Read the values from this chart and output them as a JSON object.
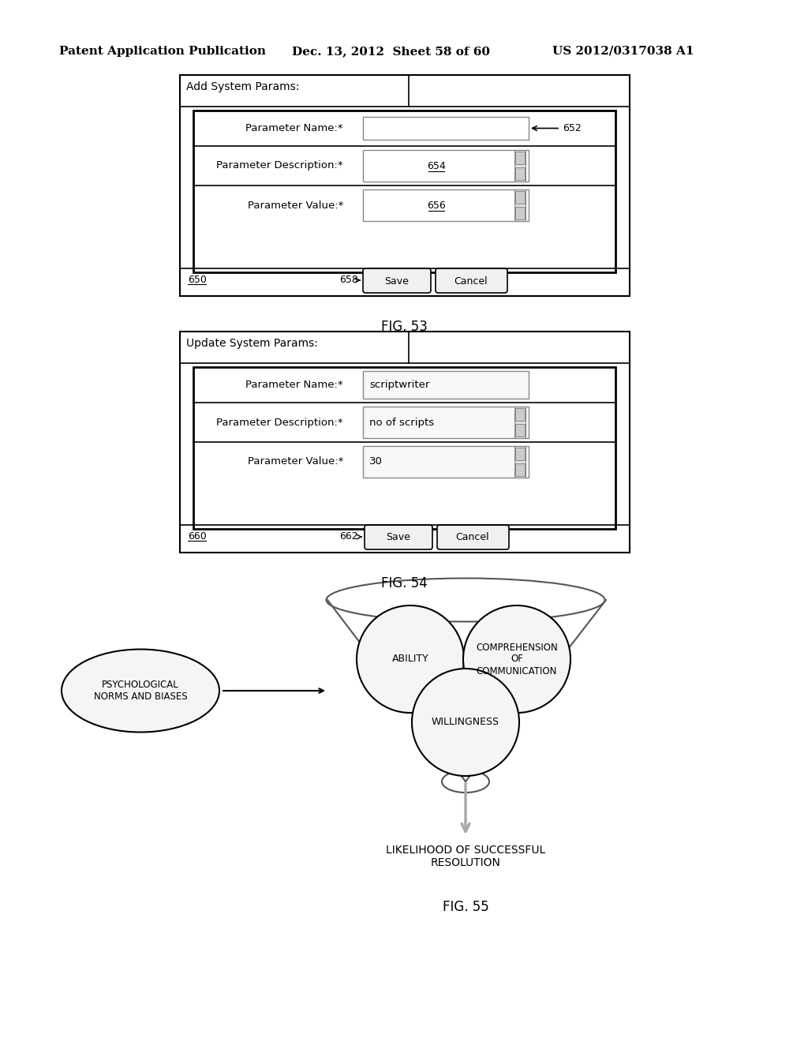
{
  "bg_color": "#ffffff",
  "header_text": "Patent Application Publication",
  "header_date": "Dec. 13, 2012  Sheet 58 of 60",
  "header_patent": "US 2012/0317038 A1",
  "fig53_title": "FIG. 53",
  "fig54_title": "FIG. 54",
  "fig55_title": "FIG. 55",
  "fig53_header": "Add System Params:",
  "fig53_rows": [
    "Parameter Name:*",
    "Parameter Description:*",
    "Parameter Value:*"
  ],
  "fig53_labels": [
    "652",
    "654",
    "656"
  ],
  "fig53_bottom_left": "650",
  "fig53_bottom_label": "658",
  "fig54_header": "Update System Params:",
  "fig54_rows": [
    "Parameter Name:*",
    "Parameter Description:*",
    "Parameter Value:*"
  ],
  "fig54_values": [
    "scriptwriter",
    "no of scripts",
    "30"
  ],
  "fig54_bottom_left": "660",
  "fig54_bottom_label": "662",
  "circle1_label": "ABILITY",
  "circle2_label": "COMPREHENSION\nOF\nCOMMUNICATION",
  "circle3_label": "WILLINGNESS",
  "left_ellipse_label": "PSYCHOLOGICAL\nNORMS AND BIASES",
  "bottom_label": "LIKELIHOOD OF SUCCESSFUL\nRESOLUTION"
}
